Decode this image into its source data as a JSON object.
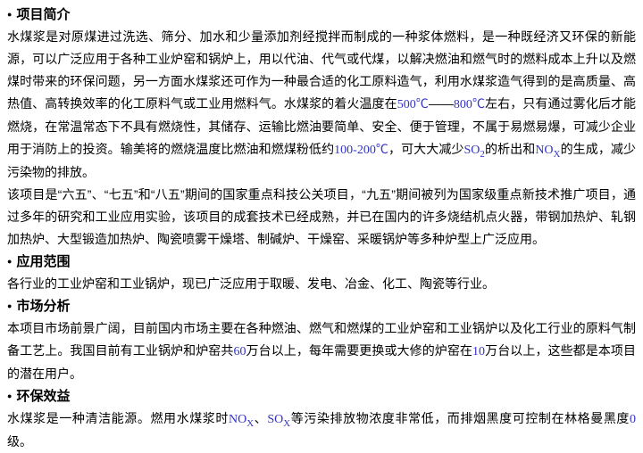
{
  "page": {
    "background": "#ffffff",
    "text_color": "#000000",
    "latin_color": "#3232c8",
    "bullet_glyph": "●"
  },
  "sections": [
    {
      "heading": "项目简介",
      "paragraphs": [
        {
          "segments": [
            {
              "text": "水煤浆是对原煤进过洗选、筛分、加水和少量添加剂经搅拌而制成的一种浆体燃料，是一种既经济又环保的新能源，可以广泛应用于各种工业炉窑和锅炉上，用以代油、代气或代煤，以解决燃油和燃气时的燃料成本上升以及燃煤时带来的环保问题，另一方面水煤浆还可作为一种最合适的化工原料造气，利用水煤浆造气得到的是高质量、高热值、高转换效率的化工原料气或工业用燃料气。水煤浆的着火温度在"
            },
            {
              "text": "500℃",
              "style": "latin"
            },
            {
              "text": "——"
            },
            {
              "text": "800℃",
              "style": "latin"
            },
            {
              "text": "左右，只有通过雾化后才能燃烧，在常温常态下不具有燃烧性，其储存、运输比燃油要简单、安全、便于管理，不属于易燃易爆，可减少企业用于消防上的投资。输美将的燃烧温度比燃油和燃煤粉低约"
            },
            {
              "text": "100-200℃",
              "style": "latin"
            },
            {
              "text": "，可大大减少"
            },
            {
              "text": "SO",
              "style": "latin"
            },
            {
              "text": "2",
              "style": "latin",
              "sub": true
            },
            {
              "text": "的析出和"
            },
            {
              "text": "NO",
              "style": "latin"
            },
            {
              "text": "X",
              "style": "latin",
              "sub": true
            },
            {
              "text": "的生成，减少污染物的排放。"
            }
          ]
        },
        {
          "segments": [
            {
              "text": "该项目是“六五”、“七五”和“八五”期间的国家重点科技公关项目，“九五”期间被列为国家级重点新技术推广项目，通过多年的研究和工业应用实验，该项目的成套技术已经成熟，并已在国内的许多烧结机点火器，带钢加热炉、轧钢加热炉、大型锻造加热炉、陶瓷喷雾干燥塔、制碱炉、干燥窑、采暖锅炉等多种炉型上广泛应用。"
            }
          ]
        }
      ]
    },
    {
      "heading": "应用范围",
      "paragraphs": [
        {
          "segments": [
            {
              "text": "各行业的工业炉窑和工业锅炉，现已广泛应用于取暖、发电、冶金、化工、陶瓷等行业。"
            }
          ]
        }
      ]
    },
    {
      "heading": "市场分析",
      "paragraphs": [
        {
          "segments": [
            {
              "text": "本项目市场前景广阔，目前国内市场主要在各种燃油、燃气和燃煤的工业炉窑和工业锅炉以及化工行业的原料气制备工艺上。我国目前有工业锅炉和炉窑共"
            },
            {
              "text": "60",
              "style": "latin"
            },
            {
              "text": "万台以上，每年需要更换或大修的炉窑在"
            },
            {
              "text": "10",
              "style": "latin"
            },
            {
              "text": "万台以上，这些都是本项目的潜在用户。"
            }
          ]
        }
      ]
    },
    {
      "heading": "环保效益",
      "paragraphs": [
        {
          "segments": [
            {
              "text": "水煤浆是一种清洁能源。燃用水煤浆时"
            },
            {
              "text": "NO",
              "style": "latin"
            },
            {
              "text": "X",
              "style": "latin",
              "sub": true
            },
            {
              "text": "、"
            },
            {
              "text": "SO",
              "style": "latin"
            },
            {
              "text": "X",
              "style": "latin",
              "sub": true
            },
            {
              "text": "等污染排放物浓度非常低，而排烟黑度可控制在林格曼黑度"
            },
            {
              "text": "0",
              "style": "latin"
            },
            {
              "text": "级。"
            }
          ]
        }
      ]
    }
  ]
}
